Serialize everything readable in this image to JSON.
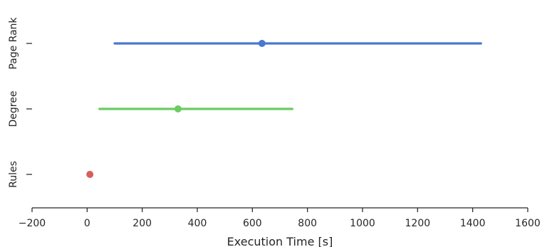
{
  "chart_data": {
    "type": "pointplot",
    "orientation": "horizontal",
    "title": "",
    "xlabel": "Execution Time [s]",
    "ylabel": "",
    "xlim": [
      -200,
      1600
    ],
    "xticks": [
      -200,
      0,
      200,
      400,
      600,
      800,
      1000,
      1200,
      1400,
      1600
    ],
    "xtick_labels": [
      "−200",
      "0",
      "200",
      "400",
      "600",
      "800",
      "1000",
      "1200",
      "1400",
      "1600"
    ],
    "categories": [
      "Page Rank",
      "Degree",
      "Rules"
    ],
    "series": [
      {
        "category": "Page Rank",
        "value": 635,
        "ci": [
          100,
          1430
        ],
        "color": "#4878d0"
      },
      {
        "category": "Degree",
        "value": 330,
        "ci": [
          45,
          745
        ],
        "color": "#6acc64"
      },
      {
        "category": "Rules",
        "value": 10,
        "ci": [
          10,
          10
        ],
        "color": "#d65f5f"
      }
    ],
    "grid": false,
    "legend": "none"
  }
}
